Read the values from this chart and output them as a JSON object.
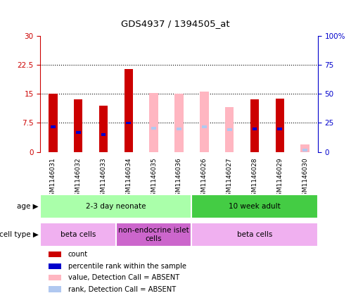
{
  "title": "GDS4937 / 1394505_at",
  "samples": [
    "GSM1146031",
    "GSM1146032",
    "GSM1146033",
    "GSM1146034",
    "GSM1146035",
    "GSM1146036",
    "GSM1146026",
    "GSM1146027",
    "GSM1146028",
    "GSM1146029",
    "GSM1146030"
  ],
  "present": [
    true,
    true,
    true,
    true,
    false,
    false,
    false,
    false,
    true,
    true,
    false
  ],
  "count_values": [
    15.0,
    13.5,
    12.0,
    21.5,
    null,
    null,
    null,
    null,
    13.5,
    13.8,
    null
  ],
  "rank_values": [
    6.5,
    5.0,
    4.5,
    7.5,
    null,
    null,
    null,
    null,
    6.0,
    6.0,
    null
  ],
  "absent_count_values": [
    null,
    null,
    null,
    null,
    15.2,
    15.0,
    15.5,
    11.5,
    null,
    null,
    2.0
  ],
  "absent_rank_values": [
    null,
    null,
    null,
    null,
    6.2,
    6.0,
    6.5,
    5.8,
    null,
    null,
    0.5
  ],
  "ylim": [
    0,
    30
  ],
  "y2lim": [
    0,
    100
  ],
  "yticks": [
    0,
    7.5,
    15,
    22.5,
    30
  ],
  "ytick_labels": [
    "0",
    "7.5",
    "15",
    "22.5",
    "30"
  ],
  "y2ticks": [
    0,
    25,
    50,
    75,
    100
  ],
  "y2tick_labels": [
    "0",
    "25",
    "50",
    "75",
    "100%"
  ],
  "age_groups": [
    {
      "label": "2-3 day neonate",
      "start": 0,
      "end": 6,
      "color": "#aaffaa"
    },
    {
      "label": "10 week adult",
      "start": 6,
      "end": 11,
      "color": "#44cc44"
    }
  ],
  "cell_type_groups": [
    {
      "label": "beta cells",
      "start": 0,
      "end": 3,
      "color": "#f0b0f0"
    },
    {
      "label": "non-endocrine islet\ncells",
      "start": 3,
      "end": 6,
      "color": "#cc66cc"
    },
    {
      "label": "beta cells",
      "start": 6,
      "end": 11,
      "color": "#f0b0f0"
    }
  ],
  "bar_width": 0.35,
  "count_color": "#cc0000",
  "rank_color": "#0000cc",
  "absent_count_color": "#ffb6c1",
  "absent_rank_color": "#b0c8f0",
  "left_tick_color": "#cc0000",
  "right_tick_color": "#0000cc",
  "legend_items": [
    {
      "color": "#cc0000",
      "label": "count"
    },
    {
      "color": "#0000cc",
      "label": "percentile rank within the sample"
    },
    {
      "color": "#ffb6c1",
      "label": "value, Detection Call = ABSENT"
    },
    {
      "color": "#b0c8f0",
      "label": "rank, Detection Call = ABSENT"
    }
  ]
}
